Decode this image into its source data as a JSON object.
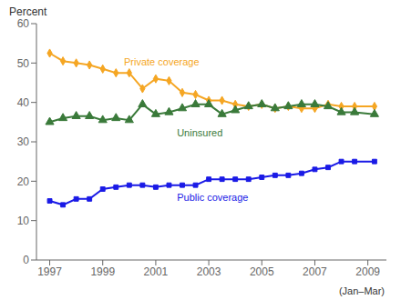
{
  "chart_data": {
    "type": "line",
    "ylabel": "Percent",
    "xlabel": "(Jan–Mar)",
    "x": [
      1997,
      1997.5,
      1998,
      1998.5,
      1999,
      1999.5,
      2000,
      2000.5,
      2001,
      2001.5,
      2002,
      2002.5,
      2003,
      2003.5,
      2004,
      2004.5,
      2005,
      2005.5,
      2006,
      2006.5,
      2007,
      2007.5,
      2008,
      2008.5,
      2009.25
    ],
    "series": [
      {
        "name": "Private coverage",
        "color": "#F5A623",
        "marker": "diamond",
        "values": [
          52.5,
          50.5,
          50.0,
          49.5,
          48.5,
          47.5,
          47.5,
          43.5,
          46.0,
          45.5,
          42.5,
          42.0,
          40.5,
          40.5,
          39.5,
          39.0,
          39.5,
          38.5,
          39.0,
          38.5,
          38.5,
          39.5,
          39.0,
          39.0,
          39.0
        ]
      },
      {
        "name": "Uninsured",
        "color": "#3A7A3A",
        "marker": "triangle",
        "values": [
          35.0,
          36.0,
          36.5,
          36.5,
          35.5,
          36.0,
          35.5,
          39.5,
          37.0,
          37.5,
          38.5,
          39.5,
          39.5,
          37.0,
          38.0,
          39.0,
          39.5,
          38.5,
          39.0,
          39.5,
          39.5,
          39.0,
          37.5,
          37.5,
          37.0
        ]
      },
      {
        "name": "Public coverage",
        "color": "#1A1AE6",
        "marker": "square",
        "values": [
          15.0,
          14.0,
          15.5,
          15.5,
          18.0,
          18.5,
          19.0,
          19.0,
          18.5,
          19.0,
          19.0,
          19.0,
          20.5,
          20.5,
          20.5,
          20.5,
          21.0,
          21.5,
          21.5,
          22.0,
          23.0,
          23.5,
          25.0,
          25.0,
          25.0
        ]
      }
    ],
    "annotations": [
      {
        "text": "Private coverage",
        "x": 1999.8,
        "y": 51.5,
        "color": "#F5A623"
      },
      {
        "text": "Uninsured",
        "x": 2001.8,
        "y": 33.5,
        "color": "#3A7A3A"
      },
      {
        "text": "Public coverage",
        "x": 2001.8,
        "y": 17.0,
        "color": "#1A1AE6"
      }
    ],
    "xlim": [
      1996.5,
      2009.7
    ],
    "ylim": [
      0,
      60
    ],
    "xticks": [
      1997,
      1999,
      2001,
      2003,
      2005,
      2007,
      2009
    ],
    "yticks": [
      0,
      10,
      20,
      30,
      40,
      50,
      60
    ],
    "grid": false
  }
}
